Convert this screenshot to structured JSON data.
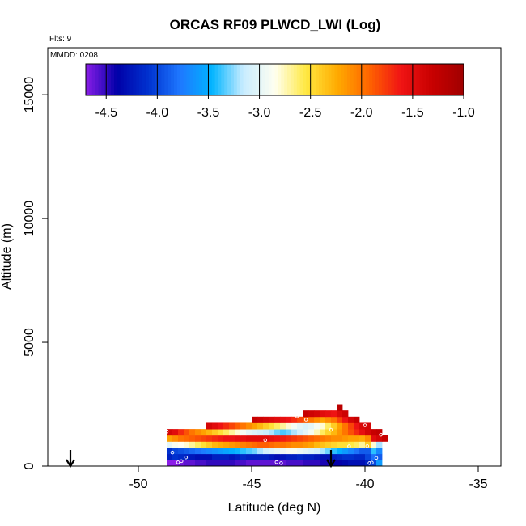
{
  "chart_data": {
    "type": "heatmap",
    "title": "ORCAS RF09 PLWCD_LWI (Log)",
    "annotations": {
      "flights": "Flts: 9",
      "date": "MMDD: 0208"
    },
    "xlabel": "Latitude (deg N)",
    "ylabel": "Altitude (m)",
    "xlim": [
      -54,
      -34
    ],
    "ylim": [
      0,
      16900
    ],
    "xticks": [
      -50,
      -45,
      -40,
      -35
    ],
    "yticks": [
      0,
      5000,
      10000,
      15000
    ],
    "colorbar": {
      "ticks": [
        -4.5,
        -4.0,
        -3.5,
        -3.0,
        -2.5,
        -2.0,
        -1.5,
        -1.0
      ],
      "tick_labels": [
        "-4.5",
        "-4.0",
        "-3.5",
        "-3.0",
        "-2.5",
        "-2.0",
        "-1.5",
        "-1.0"
      ],
      "range": [
        -4.7,
        -1.0
      ],
      "placement": "top, inside plot"
    },
    "colors": {
      "scale": [
        "#8b1de8",
        "#0000a8",
        "#0033d0",
        "#1f78ff",
        "#00b4ff",
        "#c8ecff",
        "#fffff0",
        "#ffe840",
        "#ffaa00",
        "#ff6400",
        "#f01414",
        "#c80000",
        "#a00000"
      ]
    },
    "arrows_at_latitude": [
      -53,
      -41.5
    ],
    "grid": false,
    "x_bin_deg": 0.25,
    "y_bin_m": 250,
    "cells": [
      [
        -48.75,
        0,
        -4.7
      ],
      [
        -48.5,
        0,
        -4.7
      ],
      [
        -48.25,
        0,
        -4.65
      ],
      [
        -48.0,
        0,
        -4.6
      ],
      [
        -47.75,
        0,
        -4.6
      ],
      [
        -47.5,
        0,
        -4.55
      ],
      [
        -47.25,
        0,
        -4.55
      ],
      [
        -47.0,
        0,
        -4.5
      ],
      [
        -46.75,
        0,
        -4.5
      ],
      [
        -46.5,
        0,
        -4.5
      ],
      [
        -46.25,
        0,
        -4.5
      ],
      [
        -46.0,
        0,
        -4.5
      ],
      [
        -45.75,
        0,
        -4.55
      ],
      [
        -45.5,
        0,
        -4.55
      ],
      [
        -45.25,
        0,
        -4.6
      ],
      [
        -45.0,
        0,
        -4.6
      ],
      [
        -44.75,
        0,
        -4.6
      ],
      [
        -44.5,
        0,
        -4.6
      ],
      [
        -44.25,
        0,
        -4.6
      ],
      [
        -44.0,
        0,
        -4.6
      ],
      [
        -43.75,
        0,
        -4.6
      ],
      [
        -43.5,
        0,
        -4.55
      ],
      [
        -43.25,
        0,
        -4.55
      ],
      [
        -43.0,
        0,
        -4.55
      ],
      [
        -42.75,
        0,
        -4.5
      ],
      [
        -42.5,
        0,
        -4.5
      ],
      [
        -42.25,
        0,
        -4.5
      ],
      [
        -42.0,
        0,
        -4.45
      ],
      [
        -41.75,
        0,
        -4.45
      ],
      [
        -41.5,
        0,
        -4.4
      ],
      [
        -41.25,
        0,
        -4.4
      ],
      [
        -41.0,
        0,
        -4.35
      ],
      [
        -40.75,
        0,
        -4.3
      ],
      [
        -40.5,
        0,
        -4.3
      ],
      [
        -40.25,
        0,
        -4.3
      ],
      [
        -40.0,
        0,
        -4.2
      ],
      [
        -39.75,
        0,
        -4.0
      ],
      [
        -39.5,
        0,
        -3.6
      ],
      [
        -48.75,
        250,
        -4.2
      ],
      [
        -48.5,
        250,
        -4.1
      ],
      [
        -48.25,
        250,
        -4.15
      ],
      [
        -48.0,
        250,
        -4.2
      ],
      [
        -47.75,
        250,
        -4.25
      ],
      [
        -47.5,
        250,
        -4.3
      ],
      [
        -47.25,
        250,
        -4.3
      ],
      [
        -47.0,
        250,
        -4.3
      ],
      [
        -46.75,
        250,
        -4.2
      ],
      [
        -46.5,
        250,
        -4.2
      ],
      [
        -46.25,
        250,
        -4.2
      ],
      [
        -46.0,
        250,
        -4.25
      ],
      [
        -45.75,
        250,
        -4.2
      ],
      [
        -45.5,
        250,
        -4.15
      ],
      [
        -45.25,
        250,
        -4.2
      ],
      [
        -45.0,
        250,
        -4.2
      ],
      [
        -44.75,
        250,
        -4.2
      ],
      [
        -44.5,
        250,
        -4.2
      ],
      [
        -44.25,
        250,
        -4.25
      ],
      [
        -44.0,
        250,
        -4.3
      ],
      [
        -43.75,
        250,
        -4.25
      ],
      [
        -43.5,
        250,
        -4.2
      ],
      [
        -43.25,
        250,
        -4.2
      ],
      [
        -43.0,
        250,
        -4.15
      ],
      [
        -42.75,
        250,
        -4.2
      ],
      [
        -42.5,
        250,
        -4.2
      ],
      [
        -42.25,
        250,
        -4.25
      ],
      [
        -42.0,
        250,
        -4.3
      ],
      [
        -41.75,
        250,
        -4.3
      ],
      [
        -41.5,
        250,
        -4.2
      ],
      [
        -41.25,
        250,
        -4.15
      ],
      [
        -41.0,
        250,
        -4.1
      ],
      [
        -40.75,
        250,
        -4.1
      ],
      [
        -40.5,
        250,
        -4.15
      ],
      [
        -40.25,
        250,
        -4.15
      ],
      [
        -40.0,
        250,
        -4.0
      ],
      [
        -39.75,
        250,
        -3.8
      ],
      [
        -39.5,
        250,
        -3.9
      ],
      [
        -48.75,
        500,
        -4.1
      ],
      [
        -48.5,
        500,
        -4.0
      ],
      [
        -48.25,
        500,
        -3.95
      ],
      [
        -48.0,
        500,
        -3.9
      ],
      [
        -47.75,
        500,
        -3.85
      ],
      [
        -47.5,
        500,
        -3.8
      ],
      [
        -47.25,
        500,
        -3.75
      ],
      [
        -47.0,
        500,
        -3.7
      ],
      [
        -46.75,
        500,
        -3.65
      ],
      [
        -46.5,
        500,
        -3.6
      ],
      [
        -46.25,
        500,
        -3.55
      ],
      [
        -46.0,
        500,
        -3.5
      ],
      [
        -45.75,
        500,
        -3.45
      ],
      [
        -45.5,
        500,
        -3.4
      ],
      [
        -45.25,
        500,
        -3.35
      ],
      [
        -45.0,
        500,
        -3.3
      ],
      [
        -44.75,
        500,
        -3.2
      ],
      [
        -44.5,
        500,
        -3.1
      ],
      [
        -44.25,
        500,
        -3.05
      ],
      [
        -44.0,
        500,
        -3.0
      ],
      [
        -43.75,
        500,
        -2.95
      ],
      [
        -43.5,
        500,
        -2.9
      ],
      [
        -43.25,
        500,
        -2.9
      ],
      [
        -43.0,
        500,
        -2.95
      ],
      [
        -42.75,
        500,
        -3.0
      ],
      [
        -42.5,
        500,
        -3.05
      ],
      [
        -42.25,
        500,
        -3.1
      ],
      [
        -42.0,
        500,
        -3.2
      ],
      [
        -41.75,
        500,
        -3.3
      ],
      [
        -41.5,
        500,
        -3.4
      ],
      [
        -41.25,
        500,
        -3.5
      ],
      [
        -41.0,
        500,
        -3.6
      ],
      [
        -40.75,
        500,
        -3.7
      ],
      [
        -40.5,
        500,
        -3.8
      ],
      [
        -40.25,
        500,
        -3.9
      ],
      [
        -40.0,
        500,
        -3.9
      ],
      [
        -39.75,
        500,
        -3.4
      ],
      [
        -39.5,
        500,
        -3.7
      ],
      [
        -48.75,
        750,
        -3.0
      ],
      [
        -48.5,
        750,
        -2.9
      ],
      [
        -48.25,
        750,
        -2.85
      ],
      [
        -48.0,
        750,
        -2.8
      ],
      [
        -47.75,
        750,
        -2.7
      ],
      [
        -47.5,
        750,
        -2.6
      ],
      [
        -47.25,
        750,
        -2.5
      ],
      [
        -47.0,
        750,
        -2.4
      ],
      [
        -46.75,
        750,
        -2.3
      ],
      [
        -46.5,
        750,
        -2.25
      ],
      [
        -46.25,
        750,
        -2.2
      ],
      [
        -46.0,
        750,
        -2.15
      ],
      [
        -45.75,
        750,
        -2.1
      ],
      [
        -45.5,
        750,
        -2.05
      ],
      [
        -45.25,
        750,
        -2.0
      ],
      [
        -45.0,
        750,
        -1.95
      ],
      [
        -44.75,
        750,
        -1.9
      ],
      [
        -44.5,
        750,
        -1.9
      ],
      [
        -44.25,
        750,
        -1.95
      ],
      [
        -44.0,
        750,
        -2.0
      ],
      [
        -43.75,
        750,
        -2.0
      ],
      [
        -43.5,
        750,
        -2.05
      ],
      [
        -43.25,
        750,
        -2.1
      ],
      [
        -43.0,
        750,
        -2.1
      ],
      [
        -42.75,
        750,
        -2.15
      ],
      [
        -42.5,
        750,
        -2.2
      ],
      [
        -42.25,
        750,
        -2.3
      ],
      [
        -42.0,
        750,
        -2.35
      ],
      [
        -41.75,
        750,
        -2.4
      ],
      [
        -41.5,
        750,
        -2.45
      ],
      [
        -41.25,
        750,
        -2.5
      ],
      [
        -41.0,
        750,
        -2.5
      ],
      [
        -40.75,
        750,
        -2.55
      ],
      [
        -40.5,
        750,
        -2.6
      ],
      [
        -40.25,
        750,
        -2.7
      ],
      [
        -40.0,
        750,
        -2.4
      ],
      [
        -39.75,
        750,
        -2.8
      ],
      [
        -39.5,
        750,
        -3.2
      ],
      [
        -48.75,
        1000,
        -2.2
      ],
      [
        -48.5,
        1000,
        -2.1
      ],
      [
        -48.25,
        1000,
        -2.0
      ],
      [
        -48.0,
        1000,
        -1.95
      ],
      [
        -47.75,
        1000,
        -1.9
      ],
      [
        -47.5,
        1000,
        -1.85
      ],
      [
        -47.25,
        1000,
        -1.8
      ],
      [
        -47.0,
        1000,
        -1.75
      ],
      [
        -46.75,
        1000,
        -1.7
      ],
      [
        -46.5,
        1000,
        -1.65
      ],
      [
        -46.25,
        1000,
        -1.6
      ],
      [
        -46.0,
        1000,
        -1.6
      ],
      [
        -45.75,
        1000,
        -1.55
      ],
      [
        -45.5,
        1000,
        -1.55
      ],
      [
        -45.25,
        1000,
        -1.5
      ],
      [
        -45.0,
        1000,
        -1.5
      ],
      [
        -44.75,
        1000,
        -1.5
      ],
      [
        -44.5,
        1000,
        -1.5
      ],
      [
        -44.25,
        1000,
        -1.55
      ],
      [
        -44.0,
        1000,
        -1.6
      ],
      [
        -43.75,
        1000,
        -1.65
      ],
      [
        -43.5,
        1000,
        -1.7
      ],
      [
        -43.25,
        1000,
        -1.75
      ],
      [
        -43.0,
        1000,
        -1.8
      ],
      [
        -42.75,
        1000,
        -1.85
      ],
      [
        -42.5,
        1000,
        -1.9
      ],
      [
        -42.25,
        1000,
        -1.95
      ],
      [
        -42.0,
        1000,
        -2.0
      ],
      [
        -41.75,
        1000,
        -2.05
      ],
      [
        -41.5,
        1000,
        -2.1
      ],
      [
        -41.25,
        1000,
        -2.1
      ],
      [
        -41.0,
        1000,
        -2.15
      ],
      [
        -40.75,
        1000,
        -2.2
      ],
      [
        -40.5,
        1000,
        -2.2
      ],
      [
        -40.25,
        1000,
        -2.25
      ],
      [
        -40.0,
        1000,
        -2.1
      ],
      [
        -39.75,
        1000,
        -1.5
      ],
      [
        -39.5,
        1000,
        -1.4
      ],
      [
        -39.25,
        1000,
        -1.3
      ],
      [
        -48.75,
        1250,
        -1.4
      ],
      [
        -48.5,
        1250,
        -1.5
      ],
      [
        -48.25,
        1250,
        -1.7
      ],
      [
        -48.0,
        1250,
        -1.85
      ],
      [
        -47.75,
        1250,
        -2.0
      ],
      [
        -47.5,
        1250,
        -2.1
      ],
      [
        -47.25,
        1250,
        -2.2
      ],
      [
        -47.0,
        1250,
        -2.3
      ],
      [
        -46.75,
        1250,
        -2.4
      ],
      [
        -46.5,
        1250,
        -2.5
      ],
      [
        -46.25,
        1250,
        -2.6
      ],
      [
        -46.0,
        1250,
        -2.7
      ],
      [
        -45.75,
        1250,
        -2.8
      ],
      [
        -45.5,
        1250,
        -2.9
      ],
      [
        -45.25,
        1250,
        -3.0
      ],
      [
        -45.0,
        1250,
        -3.05
      ],
      [
        -44.75,
        1250,
        -3.1
      ],
      [
        -44.5,
        1250,
        -3.15
      ],
      [
        -44.25,
        1250,
        -3.2
      ],
      [
        -44.0,
        1250,
        -3.3
      ],
      [
        -43.75,
        1250,
        -3.35
      ],
      [
        -43.5,
        1250,
        -3.3
      ],
      [
        -43.25,
        1250,
        -3.2
      ],
      [
        -43.0,
        1250,
        -3.1
      ],
      [
        -42.75,
        1250,
        -3.0
      ],
      [
        -42.5,
        1250,
        -2.9
      ],
      [
        -42.25,
        1250,
        -2.75
      ],
      [
        -42.0,
        1250,
        -2.6
      ],
      [
        -41.75,
        1250,
        -2.45
      ],
      [
        -41.5,
        1250,
        -2.3
      ],
      [
        -41.25,
        1250,
        -2.15
      ],
      [
        -41.0,
        1250,
        -2.0
      ],
      [
        -40.75,
        1250,
        -1.85
      ],
      [
        -40.5,
        1250,
        -1.7
      ],
      [
        -40.25,
        1250,
        -1.55
      ],
      [
        -40.0,
        1250,
        -1.4
      ],
      [
        -39.75,
        1250,
        -1.3
      ],
      [
        -39.5,
        1250,
        -1.25
      ],
      [
        -47.0,
        1500,
        -1.4
      ],
      [
        -46.75,
        1500,
        -1.5
      ],
      [
        -46.5,
        1500,
        -1.6
      ],
      [
        -46.25,
        1500,
        -1.7
      ],
      [
        -46.0,
        1500,
        -1.8
      ],
      [
        -45.75,
        1500,
        -1.9
      ],
      [
        -45.5,
        1500,
        -2.0
      ],
      [
        -45.25,
        1500,
        -2.1
      ],
      [
        -45.0,
        1500,
        -2.2
      ],
      [
        -44.75,
        1500,
        -2.3
      ],
      [
        -44.5,
        1500,
        -2.4
      ],
      [
        -44.25,
        1500,
        -2.5
      ],
      [
        -44.0,
        1500,
        -2.6
      ],
      [
        -43.75,
        1500,
        -2.7
      ],
      [
        -43.5,
        1500,
        -2.8
      ],
      [
        -43.25,
        1500,
        -2.9
      ],
      [
        -43.0,
        1500,
        -3.0
      ],
      [
        -42.75,
        1500,
        -3.05
      ],
      [
        -42.5,
        1500,
        -3.0
      ],
      [
        -42.25,
        1500,
        -2.9
      ],
      [
        -42.0,
        1500,
        -2.8
      ],
      [
        -41.75,
        1500,
        -2.6
      ],
      [
        -41.5,
        1500,
        -2.4
      ],
      [
        -41.25,
        1500,
        -2.2
      ],
      [
        -41.0,
        1500,
        -2.0
      ],
      [
        -40.75,
        1500,
        -1.8
      ],
      [
        -40.5,
        1500,
        -1.6
      ],
      [
        -40.25,
        1500,
        -1.45
      ],
      [
        -40.0,
        1500,
        -1.4
      ],
      [
        -45.0,
        1750,
        -1.3
      ],
      [
        -44.75,
        1750,
        -1.35
      ],
      [
        -44.5,
        1750,
        -1.4
      ],
      [
        -44.25,
        1750,
        -1.45
      ],
      [
        -44.0,
        1750,
        -1.5
      ],
      [
        -43.75,
        1750,
        -1.55
      ],
      [
        -43.5,
        1750,
        -1.6
      ],
      [
        -43.25,
        1750,
        -1.7
      ],
      [
        -43.0,
        1750,
        -1.8
      ],
      [
        -42.75,
        1750,
        -1.9
      ],
      [
        -42.5,
        1750,
        -2.0
      ],
      [
        -42.25,
        1750,
        -2.1
      ],
      [
        -42.0,
        1750,
        -2.2
      ],
      [
        -41.75,
        1750,
        -2.1
      ],
      [
        -41.5,
        1750,
        -2.0
      ],
      [
        -41.25,
        1750,
        -1.8
      ],
      [
        -41.0,
        1750,
        -1.6
      ],
      [
        -40.75,
        1750,
        -1.4
      ],
      [
        -40.5,
        1750,
        -1.3
      ],
      [
        -42.75,
        2000,
        -1.3
      ],
      [
        -42.5,
        2000,
        -1.35
      ],
      [
        -42.25,
        2000,
        -1.4
      ],
      [
        -42.0,
        2000,
        -1.5
      ],
      [
        -41.75,
        2000,
        -1.55
      ],
      [
        -41.5,
        2000,
        -1.6
      ],
      [
        -41.25,
        2000,
        -1.45
      ],
      [
        -41.0,
        2000,
        -1.35
      ],
      [
        -41.25,
        2250,
        -1.2
      ]
    ],
    "markers": [
      [
        -48.5,
        550
      ],
      [
        -48.25,
        150
      ],
      [
        -48.1,
        200
      ],
      [
        -47.9,
        350
      ],
      [
        -48.75,
        1400
      ],
      [
        -44.4,
        1050
      ],
      [
        -43.9,
        160
      ],
      [
        -43.7,
        120
      ],
      [
        -41.5,
        1470
      ],
      [
        -40.0,
        1650
      ],
      [
        -39.8,
        120
      ],
      [
        -39.7,
        140
      ],
      [
        -39.5,
        330
      ],
      [
        -39.3,
        1270
      ],
      [
        -42.6,
        1880
      ],
      [
        -43.0,
        2020
      ],
      [
        -40.7,
        800
      ],
      [
        -39.9,
        810
      ]
    ]
  }
}
